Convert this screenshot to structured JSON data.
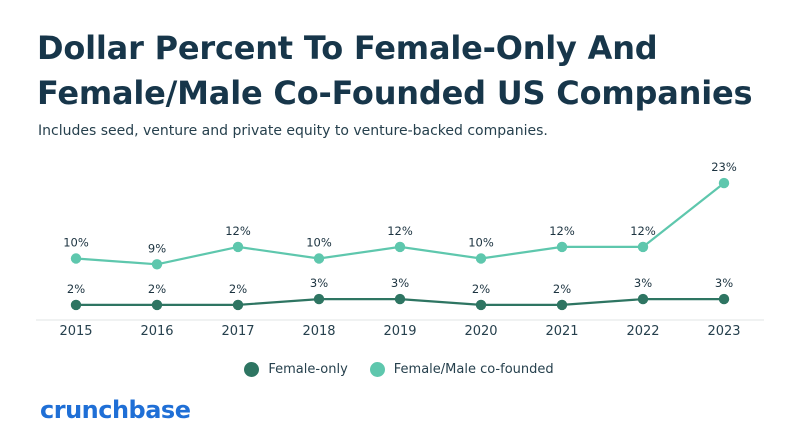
{
  "title_lines": [
    "Dollar Percent To Female-Only And",
    "Female/Male Co-Founded US Companies"
  ],
  "subtitle": "Includes seed, venture and private equity to venture-backed companies.",
  "brand": "crunchbase",
  "colors": {
    "female_only": "#2e7562",
    "co_founded": "#5ec7ad",
    "brand": "#1f6fd6",
    "axis": "#e6e9ea"
  },
  "chart_data": {
    "type": "line",
    "x": [
      "2015",
      "2016",
      "2017",
      "2018",
      "2019",
      "2020",
      "2021",
      "2022",
      "2023"
    ],
    "series": [
      {
        "name": "Female-only",
        "values": [
          2,
          2,
          2,
          3,
          3,
          2,
          2,
          3,
          3
        ],
        "labels": [
          "2%",
          "2%",
          "2%",
          "3%",
          "3%",
          "2%",
          "2%",
          "3%",
          "3%"
        ]
      },
      {
        "name": "Female/Male co-founded",
        "values": [
          10,
          9,
          12,
          10,
          12,
          10,
          12,
          12,
          23
        ],
        "labels": [
          "10%",
          "9%",
          "12%",
          "10%",
          "12%",
          "10%",
          "12%",
          "12%",
          "23%"
        ]
      }
    ],
    "ylim": [
      0,
      25
    ],
    "grid": false,
    "legend_position": "bottom"
  }
}
